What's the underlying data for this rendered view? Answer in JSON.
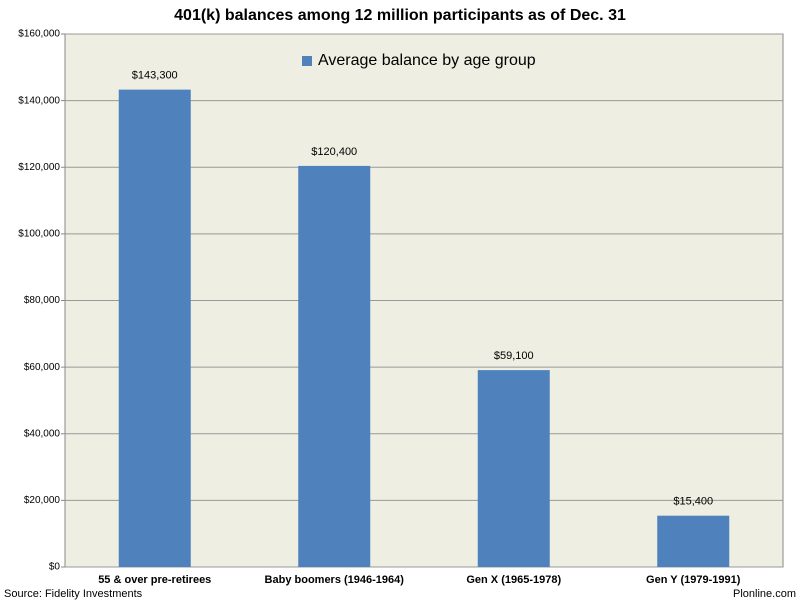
{
  "chart_data": {
    "type": "bar",
    "title": "401(k) balances among 12 million participants as of Dec. 31",
    "categories": [
      "55 & over pre-retirees",
      "Baby boomers (1946-1964)",
      "Gen X (1965-1978)",
      "Gen Y (1979-1991)"
    ],
    "series": [
      {
        "name": "Average balance by age group",
        "color": "#4f81bd",
        "values": [
          143300,
          120400,
          59100,
          15400
        ],
        "value_labels": [
          "$143,300",
          "$120,400",
          "$59,100",
          "$15,400"
        ]
      }
    ],
    "ylim": [
      0,
      160000
    ],
    "yticks": [
      {
        "value": 0,
        "label": "$0"
      },
      {
        "value": 20000,
        "label": "$20,000"
      },
      {
        "value": 40000,
        "label": "$40,000"
      },
      {
        "value": 60000,
        "label": "$60,000"
      },
      {
        "value": 80000,
        "label": "$80,000"
      },
      {
        "value": 100000,
        "label": "$100,000"
      },
      {
        "value": 120000,
        "label": "$120,000"
      },
      {
        "value": 140000,
        "label": "$140,000"
      },
      {
        "value": 160000,
        "label": "$160,000"
      }
    ],
    "grid": true,
    "legend": "top",
    "source": "Source: Fidelity Investments",
    "credit": "Plonline.com"
  }
}
